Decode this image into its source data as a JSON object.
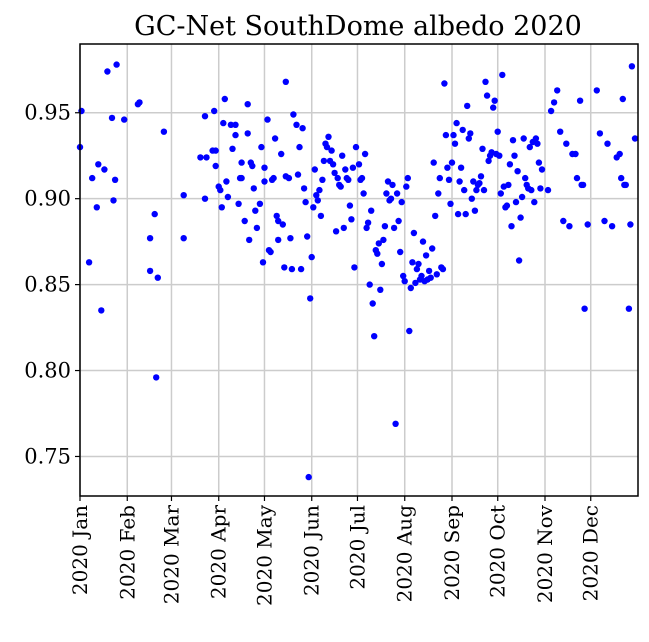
{
  "chart_data": {
    "type": "scatter",
    "title": "GC-Net SouthDome albedo 2020",
    "xlabel": "",
    "ylabel": "",
    "x_type": "date",
    "xlim": [
      "2020-01-01",
      "2020-12-31"
    ],
    "ylim": [
      0.727,
      0.99
    ],
    "x_tick_labels": [
      "2020 Jan",
      "2020 Feb",
      "2020 Mar",
      "2020 Apr",
      "2020 May",
      "2020 Jun",
      "2020 Jul",
      "2020 Aug",
      "2020 Sep",
      "2020 Oct",
      "2020 Nov",
      "2020 Dec"
    ],
    "x_tick_dates": [
      "2020-01-01",
      "2020-02-01",
      "2020-03-01",
      "2020-04-01",
      "2020-05-01",
      "2020-06-01",
      "2020-07-01",
      "2020-08-01",
      "2020-09-01",
      "2020-10-01",
      "2020-11-01",
      "2020-12-01"
    ],
    "y_ticks": [
      0.75,
      0.8,
      0.85,
      0.9,
      0.95
    ],
    "y_tick_labels": [
      "0.75",
      "0.80",
      "0.85",
      "0.90",
      "0.95"
    ],
    "grid": true,
    "marker_color": "#0000ff",
    "series": [
      {
        "points": [
          [
            "2020-01-01",
            0.93
          ],
          [
            "2020-01-02",
            0.951
          ],
          [
            "2020-01-07",
            0.863
          ],
          [
            "2020-01-09",
            0.912
          ],
          [
            "2020-01-12",
            0.895
          ],
          [
            "2020-01-13",
            0.92
          ],
          [
            "2020-01-15",
            0.835
          ],
          [
            "2020-01-17",
            0.917
          ],
          [
            "2020-01-19",
            0.974
          ],
          [
            "2020-01-22",
            0.947
          ],
          [
            "2020-01-23",
            0.899
          ],
          [
            "2020-01-24",
            0.911
          ],
          [
            "2020-01-25",
            0.978
          ],
          [
            "2020-01-30",
            0.946
          ],
          [
            "2020-02-08",
            0.955
          ],
          [
            "2020-02-09",
            0.956
          ],
          [
            "2020-02-16",
            0.858
          ],
          [
            "2020-02-16",
            0.877
          ],
          [
            "2020-02-19",
            0.891
          ],
          [
            "2020-02-20",
            0.796
          ],
          [
            "2020-02-21",
            0.854
          ],
          [
            "2020-02-25",
            0.939
          ],
          [
            "2020-03-09",
            0.877
          ],
          [
            "2020-03-09",
            0.902
          ],
          [
            "2020-03-20",
            0.924
          ],
          [
            "2020-03-23",
            0.9
          ],
          [
            "2020-03-23",
            0.948
          ],
          [
            "2020-03-24",
            0.924
          ],
          [
            "2020-03-28",
            0.928
          ],
          [
            "2020-03-29",
            0.951
          ],
          [
            "2020-03-30",
            0.919
          ],
          [
            "2020-03-30",
            0.928
          ],
          [
            "2020-04-01",
            0.907
          ],
          [
            "2020-04-02",
            0.905
          ],
          [
            "2020-04-03",
            0.895
          ],
          [
            "2020-04-04",
            0.944
          ],
          [
            "2020-04-05",
            0.958
          ],
          [
            "2020-04-06",
            0.91
          ],
          [
            "2020-04-07",
            0.901
          ],
          [
            "2020-04-09",
            0.943
          ],
          [
            "2020-04-10",
            0.929
          ],
          [
            "2020-04-12",
            0.937
          ],
          [
            "2020-04-12",
            0.943
          ],
          [
            "2020-04-14",
            0.897
          ],
          [
            "2020-04-15",
            0.912
          ],
          [
            "2020-04-16",
            0.912
          ],
          [
            "2020-04-16",
            0.921
          ],
          [
            "2020-04-18",
            0.887
          ],
          [
            "2020-04-20",
            0.938
          ],
          [
            "2020-04-20",
            0.955
          ],
          [
            "2020-04-21",
            0.876
          ],
          [
            "2020-04-22",
            0.921
          ],
          [
            "2020-04-23",
            0.919
          ],
          [
            "2020-04-24",
            0.906
          ],
          [
            "2020-04-25",
            0.893
          ],
          [
            "2020-04-26",
            0.883
          ],
          [
            "2020-04-28",
            0.897
          ],
          [
            "2020-04-29",
            0.93
          ],
          [
            "2020-04-30",
            0.863
          ],
          [
            "2020-05-01",
            0.918
          ],
          [
            "2020-05-01",
            0.91
          ],
          [
            "2020-05-03",
            0.946
          ],
          [
            "2020-05-04",
            0.87
          ],
          [
            "2020-05-05",
            0.869
          ],
          [
            "2020-05-06",
            0.911
          ],
          [
            "2020-05-07",
            0.912
          ],
          [
            "2020-05-08",
            0.935
          ],
          [
            "2020-05-09",
            0.89
          ],
          [
            "2020-05-10",
            0.876
          ],
          [
            "2020-05-10",
            0.887
          ],
          [
            "2020-05-12",
            0.926
          ],
          [
            "2020-05-13",
            0.885
          ],
          [
            "2020-05-14",
            0.86
          ],
          [
            "2020-05-15",
            0.913
          ],
          [
            "2020-05-15",
            0.968
          ],
          [
            "2020-05-17",
            0.912
          ],
          [
            "2020-05-18",
            0.877
          ],
          [
            "2020-05-19",
            0.859
          ],
          [
            "2020-05-20",
            0.949
          ],
          [
            "2020-05-22",
            0.943
          ],
          [
            "2020-05-23",
            0.914
          ],
          [
            "2020-05-24",
            0.93
          ],
          [
            "2020-05-25",
            0.859
          ],
          [
            "2020-05-26",
            0.941
          ],
          [
            "2020-05-27",
            0.906
          ],
          [
            "2020-05-28",
            0.898
          ],
          [
            "2020-05-29",
            0.878
          ],
          [
            "2020-05-30",
            0.738
          ],
          [
            "2020-05-31",
            0.842
          ],
          [
            "2020-06-01",
            0.866
          ],
          [
            "2020-06-02",
            0.895
          ],
          [
            "2020-06-03",
            0.917
          ],
          [
            "2020-06-04",
            0.902
          ],
          [
            "2020-06-05",
            0.899
          ],
          [
            "2020-06-06",
            0.905
          ],
          [
            "2020-06-07",
            0.89
          ],
          [
            "2020-06-08",
            0.911
          ],
          [
            "2020-06-09",
            0.922
          ],
          [
            "2020-06-10",
            0.932
          ],
          [
            "2020-06-11",
            0.93
          ],
          [
            "2020-06-12",
            0.936
          ],
          [
            "2020-06-13",
            0.922
          ],
          [
            "2020-06-14",
            0.928
          ],
          [
            "2020-06-15",
            0.92
          ],
          [
            "2020-06-16",
            0.915
          ],
          [
            "2020-06-17",
            0.881
          ],
          [
            "2020-06-18",
            0.912
          ],
          [
            "2020-06-19",
            0.908
          ],
          [
            "2020-06-20",
            0.907
          ],
          [
            "2020-06-21",
            0.925
          ],
          [
            "2020-06-22",
            0.883
          ],
          [
            "2020-06-23",
            0.917
          ],
          [
            "2020-06-24",
            0.912
          ],
          [
            "2020-06-25",
            0.911
          ],
          [
            "2020-06-26",
            0.896
          ],
          [
            "2020-06-27",
            0.888
          ],
          [
            "2020-06-28",
            0.918
          ],
          [
            "2020-06-29",
            0.86
          ],
          [
            "2020-06-30",
            0.93
          ],
          [
            "2020-07-02",
            0.92
          ],
          [
            "2020-07-03",
            0.911
          ],
          [
            "2020-07-04",
            0.912
          ],
          [
            "2020-07-05",
            0.903
          ],
          [
            "2020-07-06",
            0.926
          ],
          [
            "2020-07-07",
            0.883
          ],
          [
            "2020-07-08",
            0.886
          ],
          [
            "2020-07-09",
            0.85
          ],
          [
            "2020-07-10",
            0.893
          ],
          [
            "2020-07-11",
            0.839
          ],
          [
            "2020-07-12",
            0.82
          ],
          [
            "2020-07-13",
            0.87
          ],
          [
            "2020-07-14",
            0.868
          ],
          [
            "2020-07-15",
            0.874
          ],
          [
            "2020-07-16",
            0.847
          ],
          [
            "2020-07-17",
            0.862
          ],
          [
            "2020-07-18",
            0.876
          ],
          [
            "2020-07-19",
            0.884
          ],
          [
            "2020-07-20",
            0.903
          ],
          [
            "2020-07-21",
            0.91
          ],
          [
            "2020-07-22",
            0.899
          ],
          [
            "2020-07-23",
            0.9
          ],
          [
            "2020-07-24",
            0.908
          ],
          [
            "2020-07-25",
            0.883
          ],
          [
            "2020-07-26",
            0.769
          ],
          [
            "2020-07-27",
            0.903
          ],
          [
            "2020-07-28",
            0.887
          ],
          [
            "2020-07-29",
            0.869
          ],
          [
            "2020-07-30",
            0.898
          ],
          [
            "2020-07-31",
            0.855
          ],
          [
            "2020-08-01",
            0.852
          ],
          [
            "2020-08-02",
            0.907
          ],
          [
            "2020-08-03",
            0.912
          ],
          [
            "2020-08-04",
            0.823
          ],
          [
            "2020-08-05",
            0.848
          ],
          [
            "2020-08-06",
            0.863
          ],
          [
            "2020-08-07",
            0.88
          ],
          [
            "2020-08-08",
            0.851
          ],
          [
            "2020-08-09",
            0.859
          ],
          [
            "2020-08-10",
            0.862
          ],
          [
            "2020-08-11",
            0.853
          ],
          [
            "2020-08-12",
            0.855
          ],
          [
            "2020-08-13",
            0.875
          ],
          [
            "2020-08-14",
            0.852
          ],
          [
            "2020-08-15",
            0.867
          ],
          [
            "2020-08-16",
            0.853
          ],
          [
            "2020-08-17",
            0.858
          ],
          [
            "2020-08-18",
            0.854
          ],
          [
            "2020-08-19",
            0.871
          ],
          [
            "2020-08-20",
            0.921
          ],
          [
            "2020-08-21",
            0.89
          ],
          [
            "2020-08-22",
            0.856
          ],
          [
            "2020-08-23",
            0.903
          ],
          [
            "2020-08-24",
            0.912
          ],
          [
            "2020-08-25",
            0.86
          ],
          [
            "2020-08-26",
            0.859
          ],
          [
            "2020-08-27",
            0.967
          ],
          [
            "2020-08-28",
            0.937
          ],
          [
            "2020-08-29",
            0.918
          ],
          [
            "2020-08-30",
            0.911
          ],
          [
            "2020-08-31",
            0.897
          ],
          [
            "2020-09-01",
            0.921
          ],
          [
            "2020-09-02",
            0.937
          ],
          [
            "2020-09-03",
            0.932
          ],
          [
            "2020-09-04",
            0.944
          ],
          [
            "2020-09-05",
            0.891
          ],
          [
            "2020-09-06",
            0.91
          ],
          [
            "2020-09-07",
            0.918
          ],
          [
            "2020-09-08",
            0.94
          ],
          [
            "2020-09-09",
            0.905
          ],
          [
            "2020-09-10",
            0.891
          ],
          [
            "2020-09-11",
            0.954
          ],
          [
            "2020-09-12",
            0.935
          ],
          [
            "2020-09-13",
            0.938
          ],
          [
            "2020-09-14",
            0.9
          ],
          [
            "2020-09-15",
            0.91
          ],
          [
            "2020-09-16",
            0.893
          ],
          [
            "2020-09-17",
            0.905
          ],
          [
            "2020-09-18",
            0.908
          ],
          [
            "2020-09-19",
            0.909
          ],
          [
            "2020-09-20",
            0.913
          ],
          [
            "2020-09-21",
            0.929
          ],
          [
            "2020-09-22",
            0.905
          ],
          [
            "2020-09-23",
            0.968
          ],
          [
            "2020-09-24",
            0.96
          ],
          [
            "2020-09-25",
            0.922
          ],
          [
            "2020-09-26",
            0.925
          ],
          [
            "2020-09-27",
            0.927
          ],
          [
            "2020-09-28",
            0.953
          ],
          [
            "2020-09-29",
            0.957
          ],
          [
            "2020-09-30",
            0.926
          ],
          [
            "2020-10-01",
            0.939
          ],
          [
            "2020-10-02",
            0.925
          ],
          [
            "2020-10-03",
            0.903
          ],
          [
            "2020-10-04",
            0.972
          ],
          [
            "2020-10-05",
            0.907
          ],
          [
            "2020-10-06",
            0.895
          ],
          [
            "2020-10-07",
            0.896
          ],
          [
            "2020-10-08",
            0.908
          ],
          [
            "2020-10-09",
            0.92
          ],
          [
            "2020-10-10",
            0.884
          ],
          [
            "2020-10-11",
            0.934
          ],
          [
            "2020-10-12",
            0.925
          ],
          [
            "2020-10-13",
            0.898
          ],
          [
            "2020-10-14",
            0.916
          ],
          [
            "2020-10-15",
            0.864
          ],
          [
            "2020-10-16",
            0.889
          ],
          [
            "2020-10-17",
            0.901
          ],
          [
            "2020-10-18",
            0.935
          ],
          [
            "2020-10-19",
            0.912
          ],
          [
            "2020-10-20",
            0.908
          ],
          [
            "2020-10-21",
            0.906
          ],
          [
            "2020-10-22",
            0.93
          ],
          [
            "2020-10-23",
            0.905
          ],
          [
            "2020-10-24",
            0.933
          ],
          [
            "2020-10-25",
            0.898
          ],
          [
            "2020-10-26",
            0.935
          ],
          [
            "2020-10-27",
            0.932
          ],
          [
            "2020-10-28",
            0.921
          ],
          [
            "2020-10-29",
            0.906
          ],
          [
            "2020-10-30",
            0.917
          ],
          [
            "2020-11-03",
            0.905
          ],
          [
            "2020-11-05",
            0.951
          ],
          [
            "2020-11-07",
            0.956
          ],
          [
            "2020-11-09",
            0.963
          ],
          [
            "2020-11-11",
            0.939
          ],
          [
            "2020-11-13",
            0.887
          ],
          [
            "2020-11-15",
            0.932
          ],
          [
            "2020-11-17",
            0.884
          ],
          [
            "2020-11-19",
            0.926
          ],
          [
            "2020-11-21",
            0.926
          ],
          [
            "2020-11-22",
            0.912
          ],
          [
            "2020-11-24",
            0.957
          ],
          [
            "2020-11-25",
            0.908
          ],
          [
            "2020-11-26",
            0.908
          ],
          [
            "2020-11-27",
            0.836
          ],
          [
            "2020-11-29",
            0.885
          ],
          [
            "2020-12-05",
            0.963
          ],
          [
            "2020-12-07",
            0.938
          ],
          [
            "2020-12-10",
            0.887
          ],
          [
            "2020-12-12",
            0.932
          ],
          [
            "2020-12-15",
            0.884
          ],
          [
            "2020-12-18",
            0.924
          ],
          [
            "2020-12-20",
            0.926
          ],
          [
            "2020-12-21",
            0.912
          ],
          [
            "2020-12-22",
            0.958
          ],
          [
            "2020-12-23",
            0.908
          ],
          [
            "2020-12-24",
            0.908
          ],
          [
            "2020-12-26",
            0.836
          ],
          [
            "2020-12-27",
            0.885
          ],
          [
            "2020-12-28",
            0.977
          ],
          [
            "2020-12-30",
            0.935
          ]
        ]
      }
    ]
  }
}
